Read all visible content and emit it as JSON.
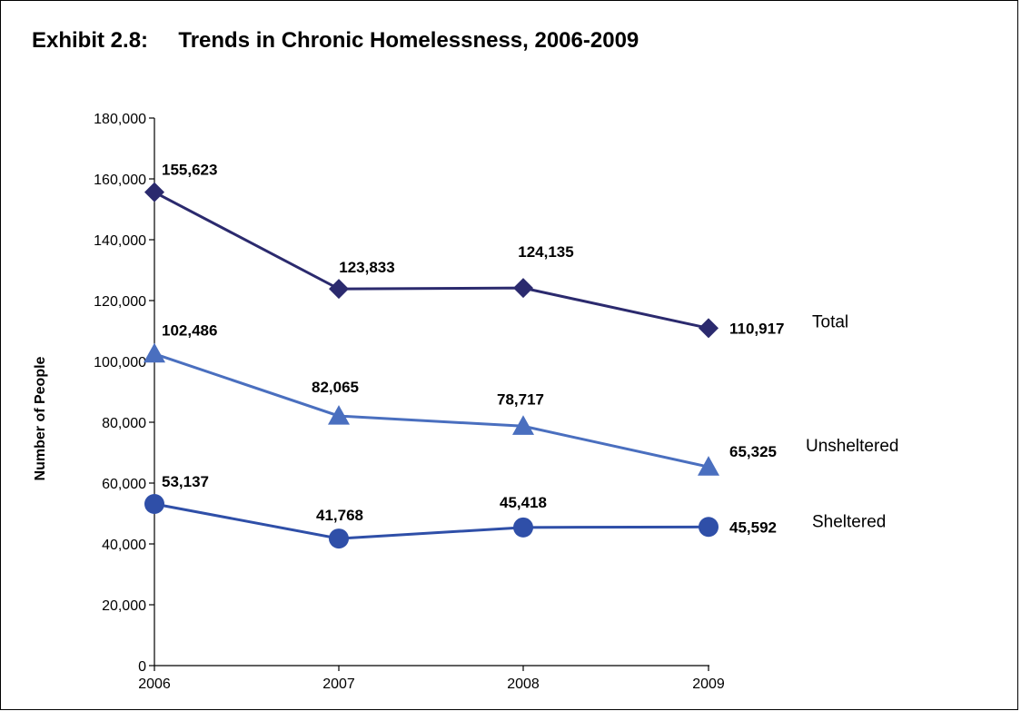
{
  "chart_data": {
    "type": "line",
    "title": "Exhibit 2.8:     Trends in Chronic Homelessness, 2006-2009",
    "xlabel": "",
    "ylabel": "Number of People",
    "categories": [
      "2006",
      "2007",
      "2008",
      "2009"
    ],
    "ylim": [
      0,
      180000
    ],
    "yticks": [
      0,
      20000,
      40000,
      60000,
      80000,
      100000,
      120000,
      140000,
      160000,
      180000
    ],
    "ytick_labels": [
      "0",
      "20,000",
      "40,000",
      "60,000",
      "80,000",
      "100,000",
      "120,000",
      "140,000",
      "160,000",
      "180,000"
    ],
    "grid": false,
    "legend": "direct labels at right end of each line",
    "series": [
      {
        "name": "Total",
        "values": [
          155623,
          123833,
          124135,
          110917
        ],
        "labels": [
          "155,623",
          "123,833",
          "124,135",
          "110,917"
        ],
        "marker": "diamond",
        "color": "#2b2a6e"
      },
      {
        "name": "Unsheltered",
        "values": [
          102486,
          82065,
          78717,
          65325
        ],
        "labels": [
          "102,486",
          "82,065",
          "78,717",
          "65,325"
        ],
        "marker": "triangle",
        "color": "#4a6fbf"
      },
      {
        "name": "Sheltered",
        "values": [
          53137,
          41768,
          45418,
          45592
        ],
        "labels": [
          "53,137",
          "41,768",
          "45,418",
          "45,592"
        ],
        "marker": "circle",
        "color": "#2f4fa8"
      }
    ]
  }
}
